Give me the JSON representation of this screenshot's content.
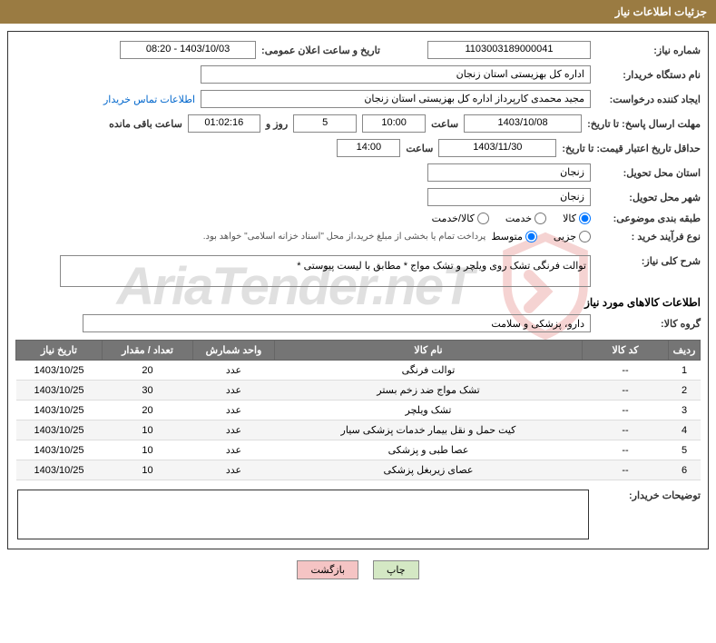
{
  "header": {
    "title": "جزئیات اطلاعات نیاز"
  },
  "fields": {
    "need_no_label": "شماره نیاز:",
    "need_no": "1103003189000041",
    "announce_label": "تاریخ و ساعت اعلان عمومی:",
    "announce_value": "1403/10/03 - 08:20",
    "buyer_org_label": "نام دستگاه خریدار:",
    "buyer_org": "اداره کل بهزیستی استان زنجان",
    "requester_label": "ایجاد کننده درخواست:",
    "requester": "مجید محمدی کارپرداز اداره کل بهزیستی استان زنجان",
    "contact_link": "اطلاعات تماس خریدار",
    "deadline_label": "مهلت ارسال پاسخ: تا تاریخ:",
    "deadline_date": "1403/10/08",
    "time_label": "ساعت",
    "deadline_time": "10:00",
    "days_val": "5",
    "days_and": "روز و",
    "countdown": "01:02:16",
    "remaining": "ساعت باقی مانده",
    "validity_label": "حداقل تاریخ اعتبار قیمت: تا تاریخ:",
    "validity_date": "1403/11/30",
    "validity_time": "14:00",
    "province_label": "استان محل تحویل:",
    "province": "زنجان",
    "city_label": "شهر محل تحویل:",
    "city": "زنجان",
    "class_label": "طبقه بندی موضوعی:",
    "class_o1": "کالا",
    "class_o2": "خدمت",
    "class_o3": "کالا/خدمت",
    "proc_label": "نوع فرآیند خرید :",
    "proc_o1": "جزیی",
    "proc_o2": "متوسط",
    "proc_note": "پرداخت تمام یا بخشی از مبلغ خرید،از محل \"اسناد خزانه اسلامی\"  خواهد بود.",
    "desc_label": "شرح کلی نیاز:",
    "desc_value": "توالت فرنگی تشک روی ویلچر و تشک مواج * مطابق با لیست پیوستی *",
    "goods_section": "اطلاعات کالاهای مورد نیاز",
    "group_label": "گروه کالا:",
    "group_value": "دارو، پزشکی و سلامت",
    "buyer_notes_label": "توضیحات خریدار:"
  },
  "table": {
    "headers": [
      "ردیف",
      "کد کالا",
      "نام کالا",
      "واحد شمارش",
      "تعداد / مقدار",
      "تاریخ نیاز"
    ],
    "col_widths": [
      "35px",
      "95px",
      "auto",
      "90px",
      "100px",
      "95px"
    ],
    "rows": [
      [
        "1",
        "--",
        "توالت فرنگی",
        "عدد",
        "20",
        "1403/10/25"
      ],
      [
        "2",
        "--",
        "تشک مواج ضد زخم بستر",
        "عدد",
        "30",
        "1403/10/25"
      ],
      [
        "3",
        "--",
        "تشک ویلچر",
        "عدد",
        "20",
        "1403/10/25"
      ],
      [
        "4",
        "--",
        "کیت حمل و نقل بیمار خدمات پزشکی سیار",
        "عدد",
        "10",
        "1403/10/25"
      ],
      [
        "5",
        "--",
        "عصا طبی و پزشکی",
        "عدد",
        "10",
        "1403/10/25"
      ],
      [
        "6",
        "--",
        "عصای زیربغل پزشکی",
        "عدد",
        "10",
        "1403/10/25"
      ]
    ]
  },
  "buttons": {
    "print": "چاپ",
    "back": "بازگشت"
  },
  "watermark": {
    "text": "AriaTender.neT"
  },
  "colors": {
    "header_bg": "#9a7b42",
    "th_bg": "#757575",
    "btn_print_bg": "#d4e8c4",
    "btn_back_bg": "#f5c4c4",
    "logo_red": "#d9534f"
  }
}
